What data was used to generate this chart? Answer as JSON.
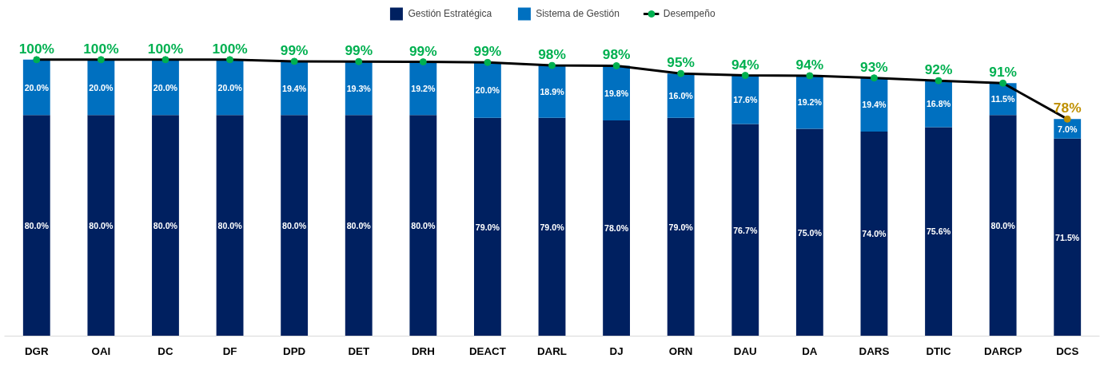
{
  "chart_data": {
    "type": "bar",
    "stacked": true,
    "legend": "top",
    "grid": false,
    "marker": "circle",
    "categories": [
      "DGR",
      "OAI",
      "DC",
      "DF",
      "DPD",
      "DET",
      "DRH",
      "DEACT",
      "DARL",
      "DJ",
      "ORN",
      "DAU",
      "DA",
      "DARS",
      "DTIC",
      "DARCP",
      "DCS"
    ],
    "series": [
      {
        "name": "Gestión Estratégica",
        "color": "#002060",
        "values": [
          80.0,
          80.0,
          80.0,
          80.0,
          80.0,
          80.0,
          80.0,
          79.0,
          79.0,
          78.0,
          79.0,
          76.7,
          75.0,
          74.0,
          75.6,
          80.0,
          71.5
        ],
        "value_labels": [
          "80.0%",
          "80.0%",
          "80.0%",
          "80.0%",
          "80.0%",
          "80.0%",
          "80.0%",
          "79.0%",
          "79.0%",
          "78.0%",
          "79.0%",
          "76.7%",
          "75.0%",
          "74.0%",
          "75.6%",
          "80.0%",
          "71.5%"
        ]
      },
      {
        "name": "Sistema de Gestión",
        "color": "#0070c0",
        "values": [
          20.0,
          20.0,
          20.0,
          20.0,
          19.4,
          19.3,
          19.2,
          20.0,
          18.9,
          19.8,
          16.0,
          17.6,
          19.2,
          19.4,
          16.8,
          11.5,
          7.0
        ],
        "value_labels": [
          "20.0%",
          "20.0%",
          "20.0%",
          "20.0%",
          "19.4%",
          "19.3%",
          "19.2%",
          "20.0%",
          "18.9%",
          "19.8%",
          "16.0%",
          "17.6%",
          "19.2%",
          "19.4%",
          "16.8%",
          "11.5%",
          "7.0%"
        ]
      },
      {
        "name": "Desempeño",
        "type": "line",
        "color": "#000000",
        "colors": [
          "#00b050",
          "#00b050",
          "#00b050",
          "#00b050",
          "#00b050",
          "#00b050",
          "#00b050",
          "#00b050",
          "#00b050",
          "#00b050",
          "#00b050",
          "#00b050",
          "#00b050",
          "#00b050",
          "#00b050",
          "#00b050",
          "#bf9000"
        ],
        "values": [
          100.0,
          100.0,
          100.0,
          100.0,
          99.4,
          99.3,
          99.2,
          99.0,
          97.9,
          97.8,
          95.0,
          94.3,
          94.2,
          93.4,
          92.4,
          91.5,
          78.5
        ],
        "value_labels": [
          "100%",
          "100%",
          "100%",
          "100%",
          "99%",
          "99%",
          "99%",
          "99%",
          "98%",
          "98%",
          "95%",
          "94%",
          "94%",
          "93%",
          "92%",
          "91%",
          "78%"
        ]
      }
    ]
  }
}
